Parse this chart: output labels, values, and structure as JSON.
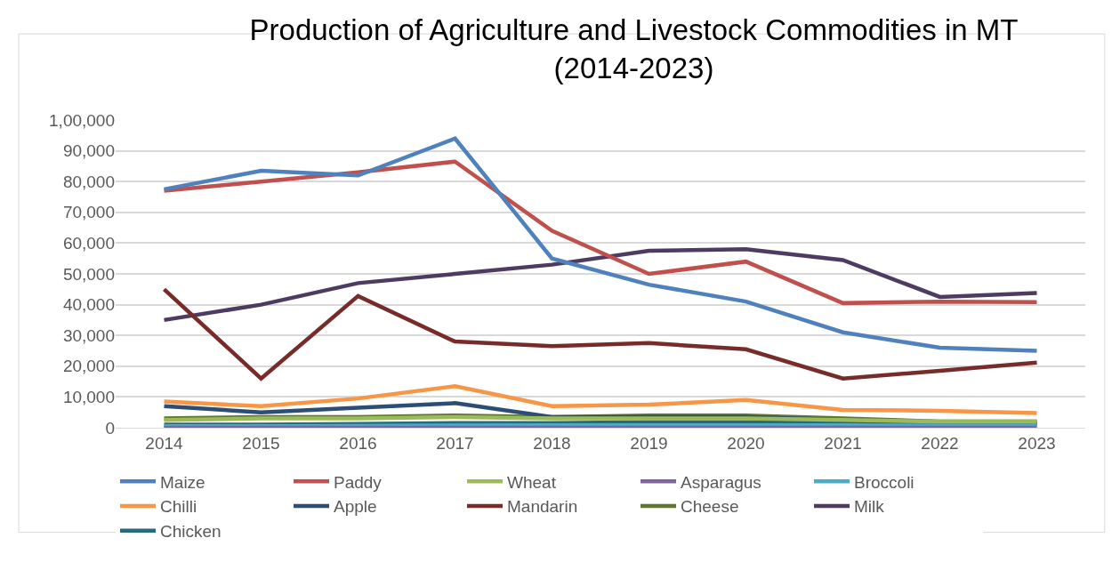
{
  "chart_data": {
    "type": "line",
    "title": "Production of Agriculture and Livestock Commodities in MT\n(2014-2023)",
    "categories": [
      "2014",
      "2015",
      "2016",
      "2017",
      "2018",
      "2019",
      "2020",
      "2021",
      "2022",
      "2023"
    ],
    "series": [
      {
        "name": "Maize",
        "color": "#4f81bd",
        "values": [
          77500,
          83500,
          82000,
          94000,
          55000,
          46500,
          41000,
          31000,
          26000,
          25000
        ]
      },
      {
        "name": "Paddy",
        "color": "#c0504d",
        "values": [
          77000,
          80000,
          83000,
          86500,
          64000,
          50000,
          54000,
          40500,
          41000,
          40800
        ]
      },
      {
        "name": "Wheat",
        "color": "#9bbb59",
        "values": [
          2500,
          3000,
          3000,
          3500,
          3000,
          3000,
          3000,
          2500,
          2000,
          2000
        ]
      },
      {
        "name": "Asparagus",
        "color": "#8064a2",
        "values": [
          0,
          0,
          0,
          0,
          0,
          0,
          0,
          0,
          0,
          0
        ]
      },
      {
        "name": "Broccoli",
        "color": "#4bacc6",
        "values": [
          500,
          500,
          600,
          700,
          800,
          800,
          800,
          800,
          700,
          700
        ]
      },
      {
        "name": "Chilli",
        "color": "#f79646",
        "values": [
          8500,
          7000,
          9500,
          13500,
          7000,
          7500,
          9000,
          5800,
          5500,
          4800
        ]
      },
      {
        "name": "Apple",
        "color": "#2c4d75",
        "values": [
          7000,
          5000,
          6500,
          8000,
          3500,
          3500,
          3500,
          2500,
          1500,
          1500
        ]
      },
      {
        "name": "Mandarin",
        "color": "#772c2a",
        "values": [
          45000,
          16000,
          42800,
          28000,
          26500,
          27500,
          25500,
          16000,
          18500,
          21200
        ]
      },
      {
        "name": "Cheese",
        "color": "#5f7530",
        "values": [
          3000,
          3500,
          3500,
          4000,
          3500,
          4000,
          4000,
          3000,
          2000,
          2000
        ]
      },
      {
        "name": "Milk",
        "color": "#4d3b62",
        "values": [
          35000,
          40000,
          47000,
          50000,
          53000,
          57500,
          58000,
          54500,
          42500,
          43800
        ]
      },
      {
        "name": "Chicken",
        "color": "#276a7c",
        "values": [
          1000,
          1000,
          1200,
          1500,
          1500,
          1800,
          1800,
          1800,
          1200,
          1200
        ]
      }
    ],
    "ylim": [
      0,
      100000
    ],
    "yticks": [
      0,
      {
        "value": 10000,
        "label": "10,000"
      },
      {
        "value": 20000,
        "label": "20,000"
      },
      {
        "value": 30000,
        "label": "30,000"
      },
      {
        "value": 40000,
        "label": "40,000"
      },
      {
        "value": 50000,
        "label": "50,000"
      },
      {
        "value": 60000,
        "label": "60,000"
      },
      {
        "value": 70000,
        "label": "70,000"
      },
      {
        "value": 80000,
        "label": "80,000"
      },
      {
        "value": 90000,
        "label": "90,000"
      },
      {
        "value": 100000,
        "label": "1,00,000"
      }
    ],
    "grid": "y",
    "legend": "bottom",
    "marker": "none",
    "line_style": "solid"
  }
}
